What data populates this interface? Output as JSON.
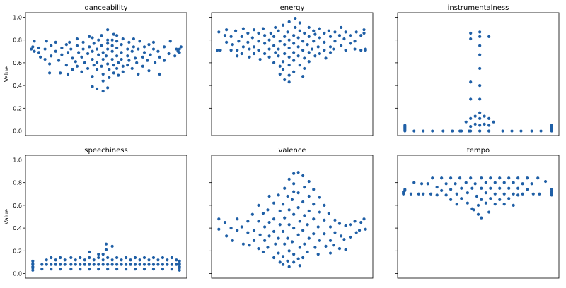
{
  "figure": {
    "ylabel": "Value",
    "yticks": [
      "0.0",
      "0.2",
      "0.4",
      "0.6",
      "0.8",
      "1.0"
    ],
    "point_color": "#1f5fa6"
  },
  "chart_data": [
    {
      "type": "scatter",
      "subtype": "swarm",
      "title": "danceability",
      "ylabel": "Value",
      "ylim": [
        -0.04,
        1.04
      ],
      "x": [
        0.01,
        0.03,
        0.02,
        0.03,
        0.06,
        0.06,
        0.07,
        0.11,
        0.1,
        0.1,
        0.14,
        0.14,
        0.13,
        0.13,
        0.17,
        0.17,
        0.19,
        0.2,
        0.21,
        0.21,
        0.24,
        0.24,
        0.25,
        0.25,
        0.28,
        0.27,
        0.28,
        0.26,
        0.3,
        0.32,
        0.31,
        0.31,
        0.31,
        0.34,
        0.34,
        0.35,
        0.35,
        0.36,
        0.38,
        0.38,
        0.39,
        0.39,
        0.41,
        0.41,
        0.42,
        0.42,
        0.41,
        0.41,
        0.41,
        0.45,
        0.44,
        0.44,
        0.44,
        0.45,
        0.44,
        0.48,
        0.47,
        0.47,
        0.47,
        0.48,
        0.48,
        0.48,
        0.48,
        0.51,
        0.51,
        0.5,
        0.51,
        0.51,
        0.52,
        0.51,
        0.51,
        0.52,
        0.54,
        0.54,
        0.54,
        0.55,
        0.55,
        0.55,
        0.54,
        0.57,
        0.57,
        0.57,
        0.57,
        0.58,
        0.58,
        0.57,
        0.6,
        0.6,
        0.6,
        0.61,
        0.61,
        0.61,
        0.64,
        0.64,
        0.64,
        0.65,
        0.65,
        0.67,
        0.67,
        0.68,
        0.68,
        0.69,
        0.7,
        0.71,
        0.71,
        0.72,
        0.74,
        0.74,
        0.75,
        0.75,
        0.77,
        0.78,
        0.78,
        0.79,
        0.81,
        0.82,
        0.81,
        0.84,
        0.85,
        0.85,
        0.88,
        0.88,
        0.91,
        0.92,
        0.95,
        0.96,
        0.98,
        0.97,
        0.98,
        0.99
      ],
      "y": [
        0.72,
        0.7,
        0.74,
        0.79,
        0.73,
        0.69,
        0.65,
        0.79,
        0.72,
        0.63,
        0.75,
        0.66,
        0.59,
        0.51,
        0.7,
        0.78,
        0.62,
        0.51,
        0.73,
        0.67,
        0.58,
        0.76,
        0.69,
        0.5,
        0.54,
        0.72,
        0.64,
        0.78,
        0.61,
        0.69,
        0.75,
        0.57,
        0.81,
        0.65,
        0.52,
        0.72,
        0.78,
        0.6,
        0.68,
        0.55,
        0.83,
        0.74,
        0.63,
        0.7,
        0.58,
        0.77,
        0.48,
        0.39,
        0.82,
        0.67,
        0.72,
        0.6,
        0.54,
        0.8,
        0.37,
        0.63,
        0.75,
        0.57,
        0.84,
        0.69,
        0.5,
        0.35,
        0.44,
        0.72,
        0.59,
        0.66,
        0.8,
        0.89,
        0.54,
        0.77,
        0.38,
        0.47,
        0.63,
        0.7,
        0.75,
        0.58,
        0.85,
        0.51,
        0.8,
        0.66,
        0.73,
        0.55,
        0.79,
        0.49,
        0.6,
        0.84,
        0.69,
        0.63,
        0.76,
        0.57,
        0.81,
        0.52,
        0.72,
        0.66,
        0.58,
        0.78,
        0.62,
        0.7,
        0.55,
        0.74,
        0.81,
        0.64,
        0.6,
        0.72,
        0.5,
        0.79,
        0.65,
        0.57,
        0.74,
        0.69,
        0.62,
        0.76,
        0.53,
        0.67,
        0.72,
        0.6,
        0.78,
        0.7,
        0.65,
        0.5,
        0.74,
        0.62,
        0.68,
        0.79,
        0.66,
        0.72,
        0.69,
        0.7,
        0.72,
        0.74
      ]
    },
    {
      "type": "scatter",
      "subtype": "swarm",
      "title": "energy",
      "ylim": [
        -0.04,
        1.04
      ],
      "x": [
        0.02,
        0.01,
        0.03,
        0.06,
        0.07,
        0.07,
        0.1,
        0.1,
        0.11,
        0.13,
        0.14,
        0.15,
        0.14,
        0.17,
        0.18,
        0.18,
        0.17,
        0.21,
        0.21,
        0.22,
        0.22,
        0.24,
        0.25,
        0.25,
        0.25,
        0.28,
        0.28,
        0.28,
        0.29,
        0.32,
        0.32,
        0.32,
        0.31,
        0.35,
        0.35,
        0.35,
        0.36,
        0.38,
        0.38,
        0.38,
        0.39,
        0.39,
        0.42,
        0.41,
        0.41,
        0.42,
        0.41,
        0.42,
        0.45,
        0.45,
        0.45,
        0.44,
        0.44,
        0.45,
        0.44,
        0.48,
        0.48,
        0.47,
        0.48,
        0.48,
        0.48,
        0.48,
        0.48,
        0.51,
        0.51,
        0.51,
        0.51,
        0.52,
        0.51,
        0.52,
        0.54,
        0.54,
        0.54,
        0.55,
        0.55,
        0.55,
        0.57,
        0.57,
        0.58,
        0.58,
        0.58,
        0.57,
        0.6,
        0.61,
        0.61,
        0.61,
        0.61,
        0.63,
        0.64,
        0.64,
        0.65,
        0.65,
        0.67,
        0.68,
        0.68,
        0.68,
        0.71,
        0.71,
        0.71,
        0.72,
        0.75,
        0.75,
        0.75,
        0.74,
        0.78,
        0.78,
        0.77,
        0.81,
        0.82,
        0.82,
        0.85,
        0.84,
        0.85,
        0.88,
        0.88,
        0.91,
        0.92,
        0.91,
        0.95,
        0.95,
        0.97,
        0.98,
        0.97,
        0.98
      ],
      "y": [
        0.87,
        0.71,
        0.71,
        0.84,
        0.78,
        0.89,
        0.71,
        0.83,
        0.76,
        0.88,
        0.66,
        0.79,
        0.71,
        0.83,
        0.74,
        0.9,
        0.68,
        0.78,
        0.86,
        0.72,
        0.65,
        0.82,
        0.74,
        0.89,
        0.68,
        0.79,
        0.86,
        0.71,
        0.63,
        0.77,
        0.84,
        0.68,
        0.9,
        0.72,
        0.8,
        0.65,
        0.86,
        0.6,
        0.75,
        0.83,
        0.69,
        0.91,
        0.79,
        0.88,
        0.72,
        0.57,
        0.66,
        0.5,
        0.83,
        0.76,
        0.68,
        0.93,
        0.61,
        0.45,
        0.54,
        0.8,
        0.73,
        0.87,
        0.65,
        0.58,
        0.49,
        0.43,
        0.96,
        0.84,
        0.69,
        0.77,
        0.62,
        0.91,
        0.52,
        0.99,
        0.74,
        0.82,
        0.66,
        0.88,
        0.58,
        0.95,
        0.71,
        0.79,
        0.64,
        0.86,
        0.55,
        0.48,
        0.76,
        0.69,
        0.83,
        0.91,
        0.61,
        0.72,
        0.88,
        0.79,
        0.66,
        0.85,
        0.74,
        0.82,
        0.68,
        0.9,
        0.71,
        0.78,
        0.86,
        0.64,
        0.83,
        0.74,
        0.69,
        0.88,
        0.79,
        0.87,
        0.72,
        0.84,
        0.75,
        0.91,
        0.71,
        0.81,
        0.87,
        0.77,
        0.84,
        0.72,
        0.87,
        0.79,
        0.84,
        0.71,
        0.86,
        0.71,
        0.89,
        0.72
      ]
    },
    {
      "type": "scatter",
      "subtype": "swarm",
      "title": "instrumentalness",
      "ylim": [
        -0.04,
        1.04
      ],
      "x": [
        0.02,
        0.02,
        0.02,
        0.02,
        0.02,
        0.02,
        0.08,
        0.14,
        0.2,
        0.27,
        0.33,
        0.39,
        0.42,
        0.45,
        0.45,
        0.48,
        0.48,
        0.51,
        0.51,
        0.51,
        0.54,
        0.54,
        0.57,
        0.57,
        0.6,
        0.66,
        0.72,
        0.78,
        0.85,
        0.91,
        0.98,
        0.98,
        0.98,
        0.98,
        0.98,
        0.98,
        0.38,
        0.44,
        0.51,
        0.57,
        0.45,
        0.51,
        0.57,
        0.51,
        0.45,
        0.51,
        0.45,
        0.51,
        0.51,
        0.51,
        0.45,
        0.51,
        0.57,
        0.45,
        0.51,
        0.57
      ],
      "y": [
        0.0,
        0.01,
        0.02,
        0.03,
        0.04,
        0.05,
        0.0,
        0.0,
        0.0,
        0.0,
        0.0,
        0.0,
        0.08,
        0.04,
        0.11,
        0.06,
        0.13,
        0.05,
        0.11,
        0.16,
        0.06,
        0.13,
        0.05,
        0.11,
        0.08,
        0.0,
        0.0,
        0.0,
        0.0,
        0.0,
        0.0,
        0.01,
        0.02,
        0.03,
        0.04,
        0.05,
        0.0,
        0.0,
        0.0,
        0.0,
        0.0,
        0.0,
        0.0,
        0.55,
        0.43,
        0.67,
        0.28,
        0.75,
        0.4,
        0.28,
        0.81,
        0.83,
        0.83,
        0.86,
        0.87,
        0.0
      ]
    },
    {
      "type": "scatter",
      "subtype": "swarm",
      "title": "speechiness",
      "ylabel": "Value",
      "ylim": [
        -0.04,
        1.04
      ],
      "x": [
        0.02,
        0.02,
        0.02,
        0.02,
        0.02,
        0.02,
        0.08,
        0.14,
        0.2,
        0.27,
        0.33,
        0.39,
        0.45,
        0.51,
        0.57,
        0.63,
        0.69,
        0.75,
        0.81,
        0.87,
        0.93,
        0.98,
        0.98,
        0.98,
        0.98,
        0.98,
        0.98,
        0.08,
        0.11,
        0.14,
        0.17,
        0.2,
        0.23,
        0.27,
        0.3,
        0.33,
        0.36,
        0.39,
        0.42,
        0.45,
        0.48,
        0.51,
        0.54,
        0.57,
        0.6,
        0.63,
        0.66,
        0.69,
        0.72,
        0.75,
        0.78,
        0.81,
        0.84,
        0.87,
        0.9,
        0.93,
        0.96,
        0.11,
        0.17,
        0.23,
        0.3,
        0.36,
        0.42,
        0.48,
        0.54,
        0.6,
        0.66,
        0.72,
        0.78,
        0.84,
        0.9,
        0.96,
        0.14,
        0.2,
        0.27,
        0.33,
        0.39,
        0.45,
        0.51,
        0.57,
        0.63,
        0.69,
        0.75,
        0.81,
        0.87,
        0.93,
        0.39,
        0.45,
        0.48,
        0.5,
        0.5,
        0.54
      ],
      "y": [
        0.03,
        0.05,
        0.06,
        0.08,
        0.09,
        0.11,
        0.04,
        0.04,
        0.04,
        0.04,
        0.04,
        0.04,
        0.04,
        0.04,
        0.04,
        0.04,
        0.04,
        0.04,
        0.04,
        0.04,
        0.04,
        0.03,
        0.05,
        0.06,
        0.08,
        0.09,
        0.11,
        0.08,
        0.08,
        0.08,
        0.08,
        0.08,
        0.08,
        0.08,
        0.08,
        0.08,
        0.08,
        0.08,
        0.08,
        0.08,
        0.08,
        0.08,
        0.08,
        0.08,
        0.08,
        0.08,
        0.08,
        0.08,
        0.08,
        0.08,
        0.08,
        0.08,
        0.08,
        0.08,
        0.08,
        0.08,
        0.08,
        0.12,
        0.12,
        0.12,
        0.12,
        0.12,
        0.12,
        0.12,
        0.12,
        0.12,
        0.12,
        0.12,
        0.12,
        0.12,
        0.12,
        0.12,
        0.14,
        0.14,
        0.14,
        0.14,
        0.14,
        0.14,
        0.14,
        0.14,
        0.14,
        0.14,
        0.14,
        0.14,
        0.14,
        0.14,
        0.19,
        0.17,
        0.17,
        0.26,
        0.21,
        0.24
      ]
    },
    {
      "type": "scatter",
      "subtype": "swarm",
      "title": "valence",
      "ylim": [
        -0.04,
        1.04
      ],
      "x": [
        0.02,
        0.02,
        0.06,
        0.07,
        0.1,
        0.11,
        0.14,
        0.14,
        0.17,
        0.18,
        0.21,
        0.21,
        0.22,
        0.24,
        0.25,
        0.25,
        0.28,
        0.28,
        0.29,
        0.28,
        0.31,
        0.32,
        0.32,
        0.31,
        0.35,
        0.35,
        0.35,
        0.34,
        0.34,
        0.38,
        0.38,
        0.38,
        0.39,
        0.38,
        0.41,
        0.42,
        0.42,
        0.41,
        0.41,
        0.42,
        0.45,
        0.44,
        0.45,
        0.44,
        0.45,
        0.44,
        0.44,
        0.48,
        0.47,
        0.48,
        0.48,
        0.47,
        0.48,
        0.47,
        0.48,
        0.51,
        0.51,
        0.5,
        0.51,
        0.51,
        0.5,
        0.51,
        0.51,
        0.51,
        0.54,
        0.54,
        0.54,
        0.55,
        0.54,
        0.55,
        0.54,
        0.55,
        0.57,
        0.58,
        0.57,
        0.58,
        0.57,
        0.58,
        0.57,
        0.61,
        0.61,
        0.61,
        0.6,
        0.61,
        0.6,
        0.64,
        0.64,
        0.64,
        0.64,
        0.65,
        0.68,
        0.68,
        0.67,
        0.68,
        0.67,
        0.71,
        0.71,
        0.71,
        0.72,
        0.74,
        0.75,
        0.75,
        0.75,
        0.78,
        0.78,
        0.77,
        0.81,
        0.82,
        0.81,
        0.85,
        0.84,
        0.85,
        0.88,
        0.88,
        0.91,
        0.92,
        0.95,
        0.94,
        0.97,
        0.98
      ],
      "y": [
        0.48,
        0.39,
        0.45,
        0.33,
        0.4,
        0.29,
        0.48,
        0.38,
        0.41,
        0.26,
        0.46,
        0.36,
        0.25,
        0.52,
        0.38,
        0.29,
        0.46,
        0.22,
        0.34,
        0.6,
        0.53,
        0.41,
        0.29,
        0.19,
        0.68,
        0.45,
        0.33,
        0.56,
        0.23,
        0.62,
        0.48,
        0.37,
        0.26,
        0.14,
        0.69,
        0.55,
        0.43,
        0.31,
        0.18,
        0.1,
        0.75,
        0.61,
        0.49,
        0.37,
        0.26,
        0.15,
        0.08,
        0.83,
        0.68,
        0.56,
        0.43,
        0.31,
        0.2,
        0.11,
        0.06,
        0.88,
        0.79,
        0.65,
        0.52,
        0.4,
        0.28,
        0.17,
        0.1,
        0.72,
        0.89,
        0.71,
        0.58,
        0.46,
        0.34,
        0.23,
        0.13,
        0.07,
        0.86,
        0.76,
        0.63,
        0.51,
        0.38,
        0.26,
        0.14,
        0.81,
        0.68,
        0.55,
        0.43,
        0.31,
        0.19,
        0.74,
        0.61,
        0.48,
        0.35,
        0.23,
        0.67,
        0.54,
        0.41,
        0.29,
        0.17,
        0.6,
        0.47,
        0.35,
        0.24,
        0.53,
        0.41,
        0.29,
        0.18,
        0.47,
        0.36,
        0.25,
        0.44,
        0.33,
        0.22,
        0.42,
        0.3,
        0.21,
        0.43,
        0.32,
        0.46,
        0.36,
        0.45,
        0.38,
        0.48,
        0.39
      ]
    },
    {
      "type": "scatter",
      "subtype": "swarm",
      "title": "tempo",
      "ylim": [
        -0.04,
        1.04
      ],
      "x": [
        0.01,
        0.01,
        0.01,
        0.02,
        0.02,
        0.06,
        0.08,
        0.11,
        0.13,
        0.14,
        0.17,
        0.19,
        0.2,
        0.23,
        0.23,
        0.26,
        0.26,
        0.29,
        0.29,
        0.32,
        0.32,
        0.32,
        0.35,
        0.36,
        0.36,
        0.38,
        0.39,
        0.39,
        0.42,
        0.43,
        0.43,
        0.45,
        0.46,
        0.46,
        0.48,
        0.49,
        0.5,
        0.5,
        0.52,
        0.52,
        0.52,
        0.55,
        0.55,
        0.55,
        0.58,
        0.58,
        0.58,
        0.61,
        0.61,
        0.61,
        0.64,
        0.64,
        0.64,
        0.67,
        0.67,
        0.67,
        0.7,
        0.7,
        0.7,
        0.73,
        0.73,
        0.73,
        0.76,
        0.76,
        0.76,
        0.79,
        0.79,
        0.82,
        0.82,
        0.85,
        0.86,
        0.89,
        0.9,
        0.94,
        0.98,
        0.98,
        0.98,
        0.98,
        0.98,
        0.47,
        0.52,
        0.57
      ],
      "y": [
        0.7,
        0.71,
        0.72,
        0.73,
        0.74,
        0.7,
        0.8,
        0.7,
        0.79,
        0.7,
        0.79,
        0.7,
        0.84,
        0.76,
        0.69,
        0.84,
        0.73,
        0.79,
        0.69,
        0.84,
        0.74,
        0.65,
        0.79,
        0.7,
        0.61,
        0.84,
        0.75,
        0.66,
        0.8,
        0.71,
        0.62,
        0.84,
        0.75,
        0.57,
        0.79,
        0.68,
        0.6,
        0.52,
        0.84,
        0.75,
        0.65,
        0.8,
        0.71,
        0.62,
        0.84,
        0.75,
        0.66,
        0.8,
        0.7,
        0.61,
        0.84,
        0.75,
        0.65,
        0.8,
        0.7,
        0.61,
        0.84,
        0.75,
        0.66,
        0.8,
        0.7,
        0.6,
        0.84,
        0.75,
        0.69,
        0.79,
        0.7,
        0.84,
        0.74,
        0.79,
        0.7,
        0.84,
        0.7,
        0.81,
        0.69,
        0.7,
        0.71,
        0.72,
        0.74,
        0.56,
        0.49,
        0.54
      ]
    }
  ]
}
